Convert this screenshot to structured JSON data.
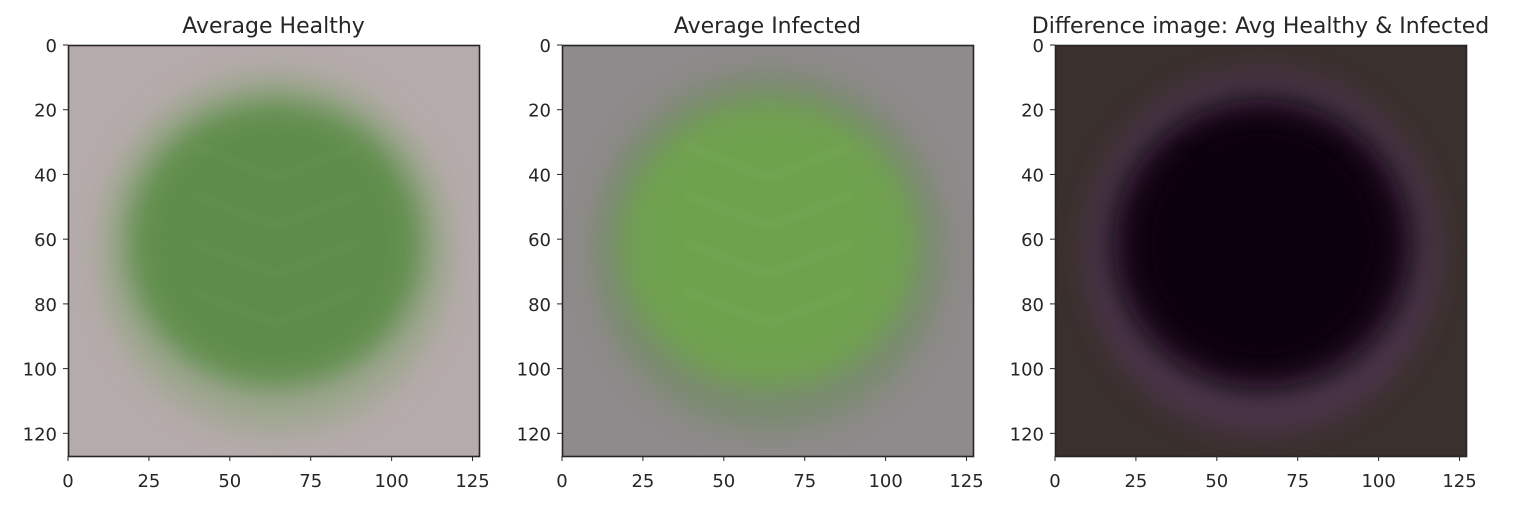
{
  "chart_data": [
    {
      "type": "image",
      "title": "Average Healthy",
      "xticks": [
        0,
        25,
        50,
        75,
        100,
        125
      ],
      "yticks": [
        0,
        20,
        40,
        60,
        80,
        100,
        120
      ],
      "xlim": [
        0,
        127
      ],
      "ylim": [
        127,
        0
      ],
      "grid": false,
      "image": {
        "background": "#b6abab",
        "leaf_color": "#5d8d48",
        "leaf_edge_color": "#8aa379",
        "vein_color": "#7fa46a"
      }
    },
    {
      "type": "image",
      "title": "Average Infected",
      "xticks": [
        0,
        25,
        50,
        75,
        100,
        125
      ],
      "yticks": [
        0,
        20,
        40,
        60,
        80,
        100,
        120
      ],
      "xlim": [
        0,
        127
      ],
      "ylim": [
        127,
        0
      ],
      "grid": false,
      "image": {
        "background": "#8f8a8b",
        "leaf_color": "#6ea34d",
        "leaf_edge_color": "#6b8a5c",
        "vein_color": "#8dbd6a"
      }
    },
    {
      "type": "image",
      "title": "Difference image: Avg Healthy & Infected",
      "xticks": [
        0,
        25,
        50,
        75,
        100,
        125
      ],
      "yticks": [
        0,
        20,
        40,
        60,
        80,
        100,
        120
      ],
      "xlim": [
        0,
        127
      ],
      "ylim": [
        127,
        0
      ],
      "grid": false,
      "image": {
        "background": "#3a302d",
        "leaf_color": "#070309",
        "leaf_edge_color": "#5a3763",
        "vein_color": "#141018"
      }
    }
  ]
}
